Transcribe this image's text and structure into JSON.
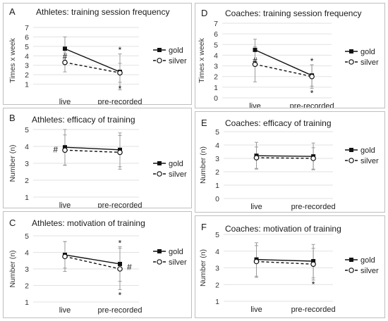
{
  "chart_data": [
    {
      "panel_label": "A",
      "type": "line",
      "title": "Athletes: training session frequency",
      "ylabel": "Times x week",
      "categories": [
        "live",
        "pre-recorded"
      ],
      "ylim": [
        0,
        7
      ],
      "yticks": [
        1,
        2,
        3,
        4,
        5,
        6,
        7
      ],
      "series": [
        {
          "name": "gold",
          "values": [
            4.75,
            2.3
          ],
          "error": [
            1.25,
            1.9
          ]
        },
        {
          "name": "silver",
          "values": [
            3.3,
            2.2
          ],
          "error": [
            1.0,
            1.0
          ]
        }
      ],
      "annotations": [
        {
          "text": "#",
          "category": "live",
          "value": 4.0
        },
        {
          "text": "*",
          "category": "pre-recorded",
          "value": 4.7
        },
        {
          "text": "*",
          "category": "pre-recorded",
          "value": 0.6
        }
      ],
      "legend_position": "right"
    },
    {
      "panel_label": "D",
      "type": "line",
      "title": "Coaches: training session frequency",
      "ylabel": "Times x week",
      "categories": [
        "live",
        "pre-recorded"
      ],
      "ylim": [
        0,
        7
      ],
      "yticks": [
        0,
        1,
        2,
        3,
        4,
        5,
        6,
        7
      ],
      "series": [
        {
          "name": "gold",
          "values": [
            4.5,
            2.1
          ],
          "error": [
            1.0,
            1.0
          ]
        },
        {
          "name": "silver",
          "values": [
            3.15,
            2.0
          ],
          "error": [
            1.65,
            1.1
          ]
        }
      ],
      "annotations": [
        {
          "text": "#",
          "category": "live",
          "value": 3.55
        },
        {
          "text": "*",
          "category": "pre-recorded",
          "value": 3.5
        },
        {
          "text": "*",
          "category": "pre-recorded",
          "value": 0.5
        }
      ],
      "legend_position": "right"
    },
    {
      "panel_label": "B",
      "type": "line",
      "title": "Athletes: efficacy of training",
      "ylabel": "Number (n)",
      "categories": [
        "live",
        "pre-recorded"
      ],
      "ylim": [
        1,
        5
      ],
      "yticks": [
        1,
        2,
        3,
        4,
        5
      ],
      "series": [
        {
          "name": "gold",
          "values": [
            3.95,
            3.8
          ],
          "error": [
            1.05,
            1.0
          ]
        },
        {
          "name": "silver",
          "values": [
            3.78,
            3.65
          ],
          "error": [
            0.9,
            1.0
          ]
        }
      ],
      "annotations": [
        {
          "text": "#",
          "category": "live",
          "value": 3.85,
          "side": "left"
        }
      ],
      "legend_position": "right"
    },
    {
      "panel_label": "E",
      "type": "line",
      "title": "Coaches: efficacy of training",
      "ylabel": "Number (n)",
      "categories": [
        "live",
        "pre-recorded"
      ],
      "ylim": [
        0,
        5
      ],
      "yticks": [
        0,
        1,
        2,
        3,
        4,
        5
      ],
      "series": [
        {
          "name": "gold",
          "values": [
            3.2,
            3.15
          ],
          "error": [
            1.0,
            1.0
          ]
        },
        {
          "name": "silver",
          "values": [
            3.05,
            3.0
          ],
          "error": [
            0.8,
            0.8
          ]
        }
      ],
      "annotations": [],
      "legend_position": "right"
    },
    {
      "panel_label": "C",
      "type": "line",
      "title": "Athletes: motivation of training",
      "ylabel": "Number (n)",
      "categories": [
        "live",
        "pre-recorded"
      ],
      "ylim": [
        1,
        5
      ],
      "yticks": [
        1,
        2,
        3,
        4,
        5
      ],
      "series": [
        {
          "name": "gold",
          "values": [
            3.85,
            3.3
          ],
          "error": [
            0.8,
            1.05
          ]
        },
        {
          "name": "silver",
          "values": [
            3.75,
            3.0
          ],
          "error": [
            0.9,
            1.25
          ]
        }
      ],
      "annotations": [
        {
          "text": "*",
          "category": "pre-recorded",
          "value": 4.6
        },
        {
          "text": "#",
          "category": "pre-recorded",
          "value": 3.15,
          "side": "right"
        },
        {
          "text": "*",
          "category": "pre-recorded",
          "value": 1.45
        }
      ],
      "legend_position": "right"
    },
    {
      "panel_label": "F",
      "type": "line",
      "title": "Coaches: motivation of training",
      "ylabel": "Number (n)",
      "categories": [
        "live",
        "pre-recorded"
      ],
      "ylim": [
        1,
        5
      ],
      "yticks": [
        1,
        2,
        3,
        4,
        5
      ],
      "series": [
        {
          "name": "gold",
          "values": [
            3.5,
            3.4
          ],
          "error": [
            1.0,
            1.0
          ]
        },
        {
          "name": "silver",
          "values": [
            3.38,
            3.22
          ],
          "error": [
            0.95,
            0.95
          ]
        }
      ],
      "annotations": [
        {
          "text": "*",
          "category": "pre-recorded",
          "value": 2.05
        }
      ],
      "legend_position": "right"
    }
  ]
}
